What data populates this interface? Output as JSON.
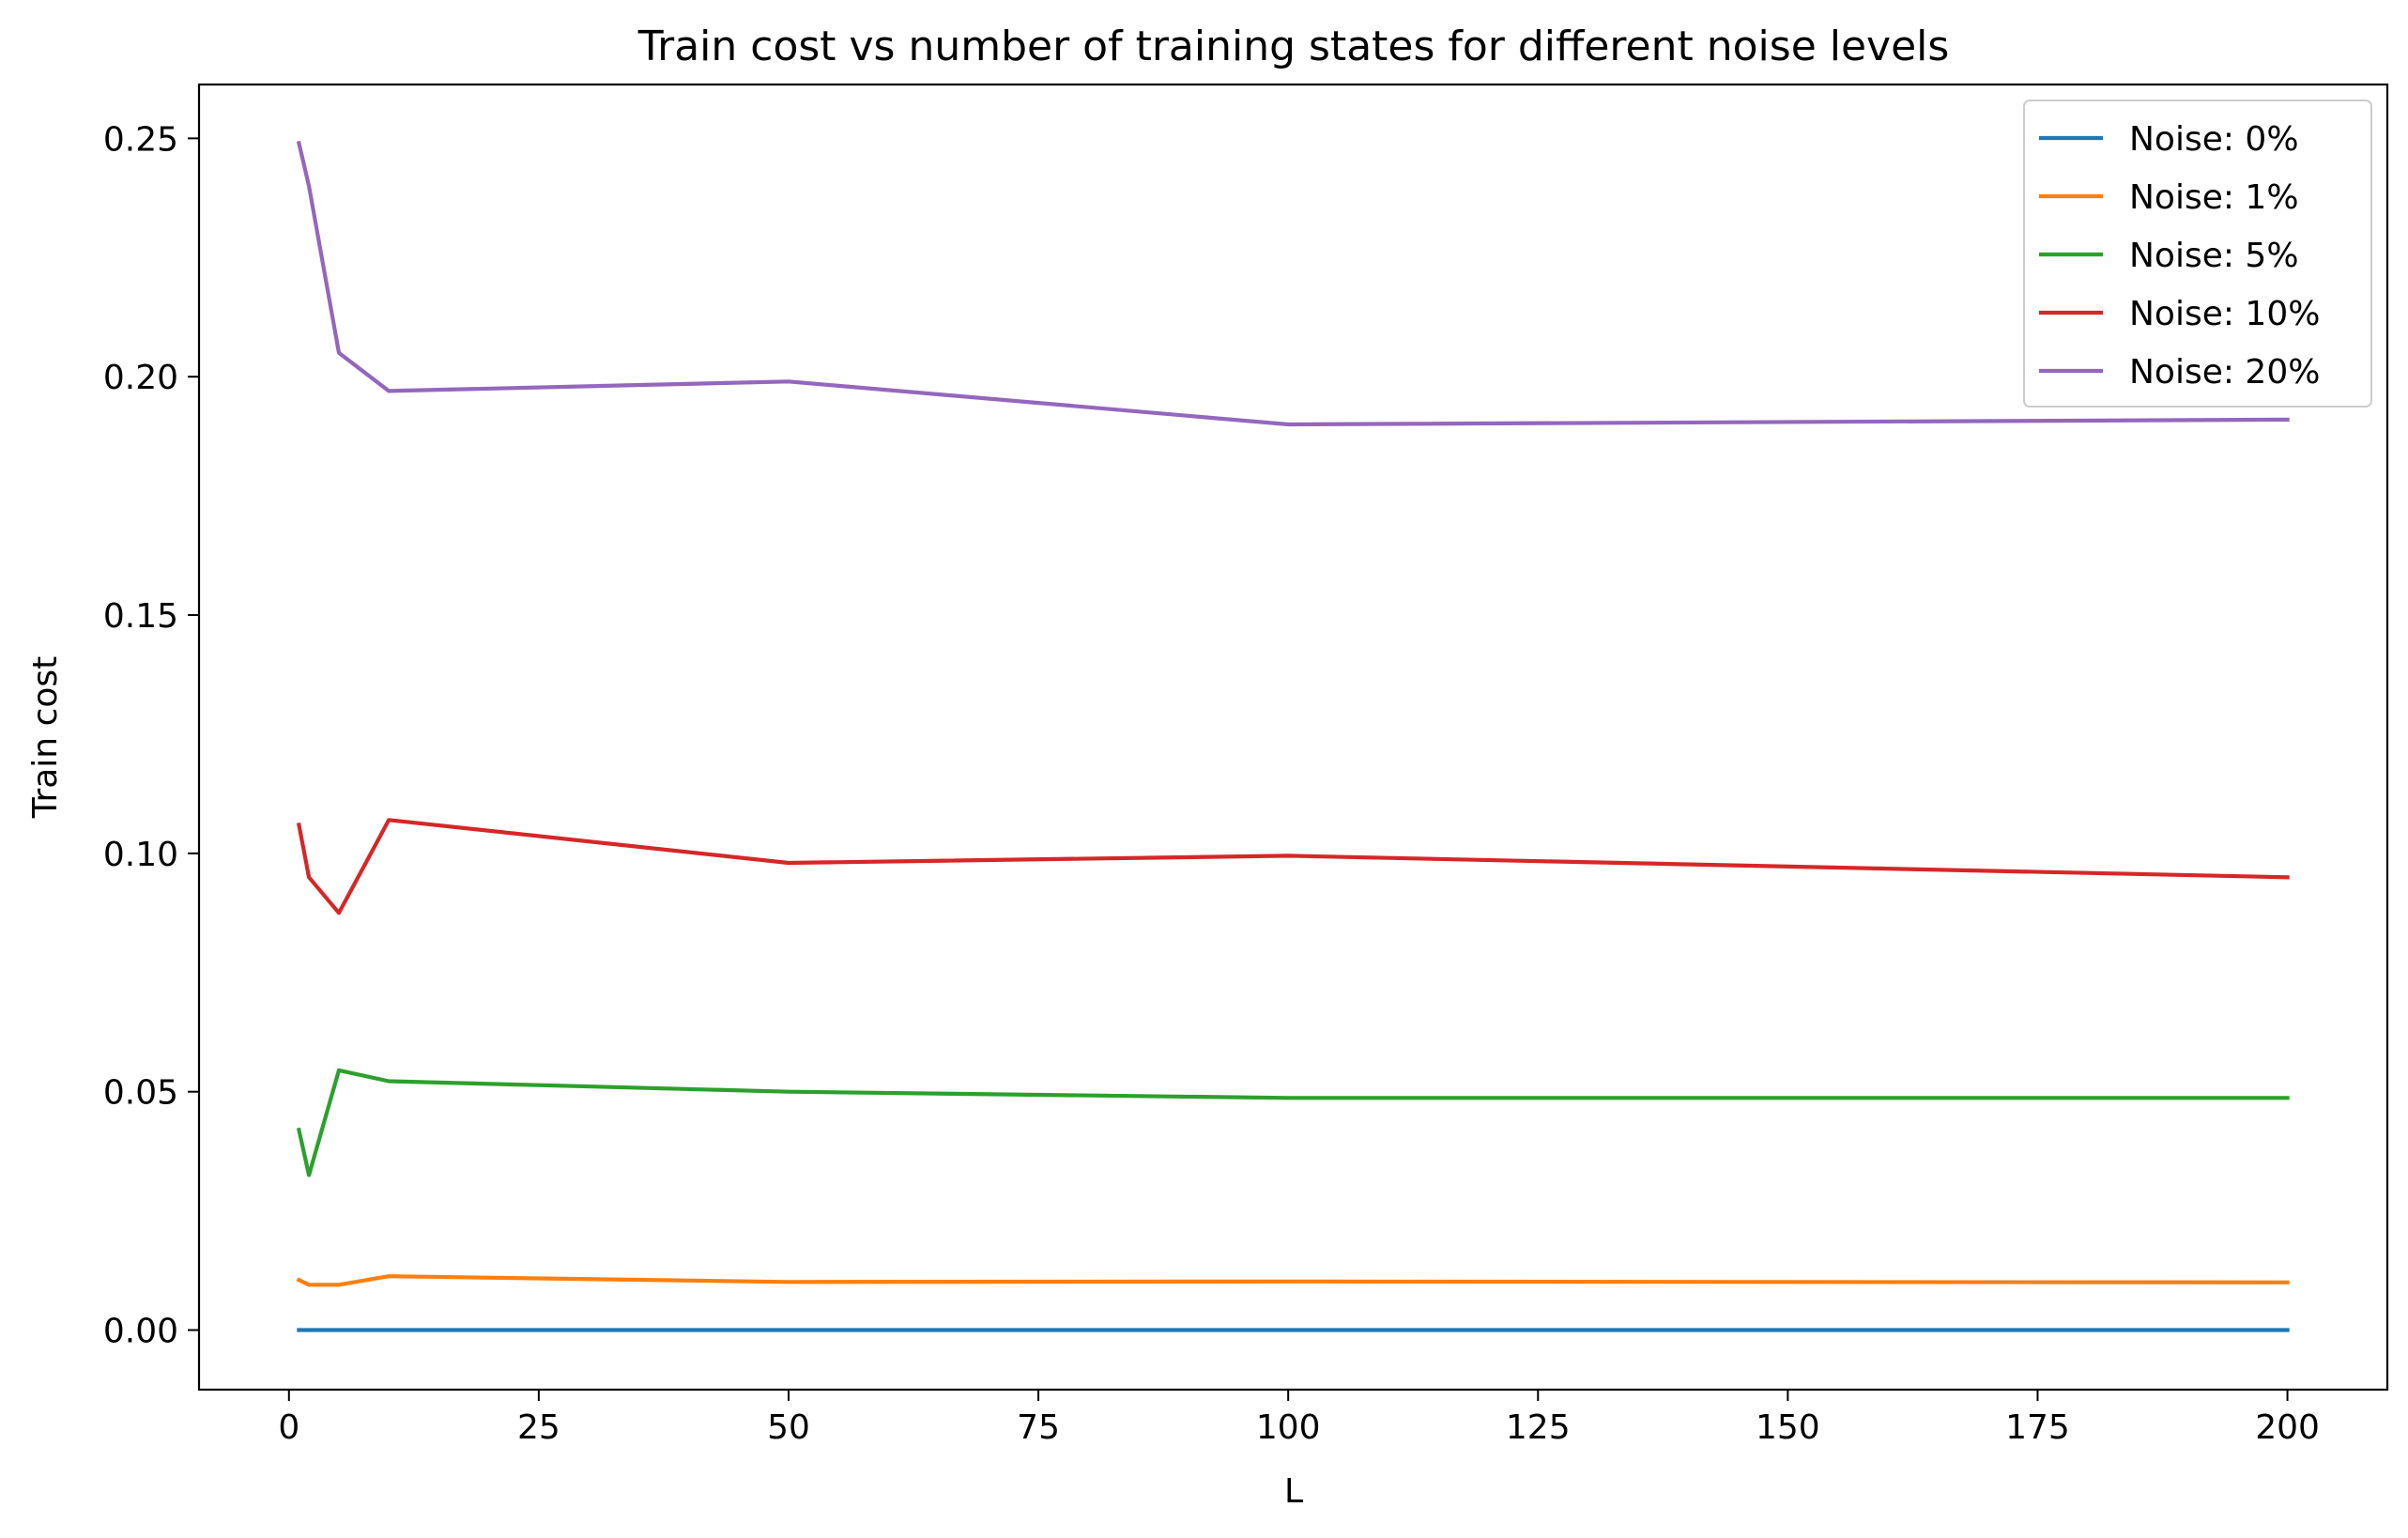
{
  "chart_data": {
    "type": "line",
    "title": "Train cost vs number of training states for different noise levels",
    "xlabel": "L",
    "ylabel": "Train cost",
    "xlim": [
      -9,
      210
    ],
    "ylim": [
      -0.0125,
      0.2613
    ],
    "xticks": [
      0,
      25,
      50,
      75,
      100,
      125,
      150,
      175,
      200
    ],
    "xtick_labels": [
      "0",
      "25",
      "50",
      "75",
      "100",
      "125",
      "150",
      "175",
      "200"
    ],
    "yticks": [
      0.0,
      0.05,
      0.1,
      0.15,
      0.2,
      0.25
    ],
    "ytick_labels": [
      "0.00",
      "0.05",
      "0.10",
      "0.15",
      "0.20",
      "0.25"
    ],
    "grid": false,
    "legend_position": "top-right",
    "series": [
      {
        "name": "Noise: 0%",
        "color": "#1f77b4",
        "x": [
          1,
          2,
          5,
          10,
          50,
          100,
          200
        ],
        "y": [
          0.0,
          0.0,
          0.0,
          0.0,
          0.0,
          0.0,
          0.0
        ]
      },
      {
        "name": "Noise: 1%",
        "color": "#ff7f0e",
        "x": [
          1,
          2,
          5,
          10,
          50,
          100,
          200
        ],
        "y": [
          0.0105,
          0.0095,
          0.0095,
          0.0113,
          0.0101,
          0.0102,
          0.01
        ]
      },
      {
        "name": "Noise: 5%",
        "color": "#2ca02c",
        "x": [
          1,
          2,
          5,
          10,
          50,
          100,
          200
        ],
        "y": [
          0.042,
          0.0325,
          0.0545,
          0.0522,
          0.05,
          0.0487,
          0.0487
        ]
      },
      {
        "name": "Noise: 10%",
        "color": "#d62728",
        "x": [
          1,
          2,
          5,
          10,
          50,
          100,
          200
        ],
        "y": [
          0.106,
          0.095,
          0.0875,
          0.107,
          0.098,
          0.0995,
          0.095
        ]
      },
      {
        "name": "Noise: 20%",
        "color": "#9467bd",
        "x": [
          1,
          2,
          5,
          10,
          50,
          100,
          200
        ],
        "y": [
          0.249,
          0.24,
          0.205,
          0.197,
          0.199,
          0.19,
          0.191
        ]
      }
    ]
  }
}
